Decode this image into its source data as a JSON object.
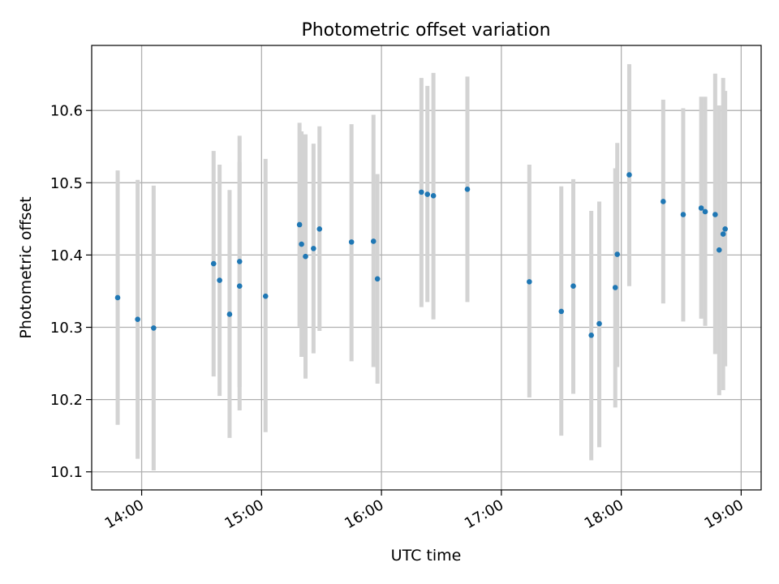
{
  "chart_data": {
    "type": "scatter",
    "title": "Photometric offset variation",
    "xlabel": "UTC time",
    "ylabel": "Photometric offset",
    "x_ticks": [
      "14:00",
      "15:00",
      "16:00",
      "17:00",
      "18:00",
      "19:00"
    ],
    "y_ticks": [
      "10.1",
      "10.2",
      "10.3",
      "10.4",
      "10.5",
      "10.6"
    ],
    "xlim": [
      "13:35",
      "19:10"
    ],
    "ylim": [
      10.075,
      10.69
    ],
    "grid": true,
    "colors": {
      "point": "#1f77b4",
      "errorbar": "#d3d3d3",
      "grid": "#b0b0b0"
    },
    "points": [
      {
        "x": "13:48",
        "y": 10.341,
        "ylo": 10.165,
        "yhi": 10.517
      },
      {
        "x": "13:58",
        "y": 10.311,
        "ylo": 10.118,
        "yhi": 10.504
      },
      {
        "x": "14:06",
        "y": 10.299,
        "ylo": 10.102,
        "yhi": 10.496
      },
      {
        "x": "14:36",
        "y": 10.388,
        "ylo": 10.232,
        "yhi": 10.544
      },
      {
        "x": "14:39",
        "y": 10.365,
        "ylo": 10.205,
        "yhi": 10.525
      },
      {
        "x": "14:44",
        "y": 10.318,
        "ylo": 10.147,
        "yhi": 10.49
      },
      {
        "x": "14:49",
        "y": 10.391,
        "ylo": 10.217,
        "yhi": 10.565
      },
      {
        "x": "14:49",
        "y": 10.357,
        "ylo": 10.185,
        "yhi": 10.529
      },
      {
        "x": "15:02",
        "y": 10.343,
        "ylo": 10.155,
        "yhi": 10.533
      },
      {
        "x": "15:19",
        "y": 10.442,
        "ylo": 10.301,
        "yhi": 10.583
      },
      {
        "x": "15:20",
        "y": 10.415,
        "ylo": 10.259,
        "yhi": 10.571
      },
      {
        "x": "15:22",
        "y": 10.398,
        "ylo": 10.229,
        "yhi": 10.567
      },
      {
        "x": "15:26",
        "y": 10.409,
        "ylo": 10.264,
        "yhi": 10.554
      },
      {
        "x": "15:29",
        "y": 10.436,
        "ylo": 10.295,
        "yhi": 10.578
      },
      {
        "x": "15:45",
        "y": 10.418,
        "ylo": 10.253,
        "yhi": 10.581
      },
      {
        "x": "15:56",
        "y": 10.419,
        "ylo": 10.245,
        "yhi": 10.594
      },
      {
        "x": "15:58",
        "y": 10.367,
        "ylo": 10.222,
        "yhi": 10.512
      },
      {
        "x": "16:20",
        "y": 10.487,
        "ylo": 10.328,
        "yhi": 10.645
      },
      {
        "x": "16:23",
        "y": 10.484,
        "ylo": 10.335,
        "yhi": 10.634
      },
      {
        "x": "16:26",
        "y": 10.482,
        "ylo": 10.311,
        "yhi": 10.652
      },
      {
        "x": "16:43",
        "y": 10.491,
        "ylo": 10.335,
        "yhi": 10.647
      },
      {
        "x": "17:14",
        "y": 10.363,
        "ylo": 10.203,
        "yhi": 10.525
      },
      {
        "x": "17:30",
        "y": 10.322,
        "ylo": 10.15,
        "yhi": 10.495
      },
      {
        "x": "17:36",
        "y": 10.357,
        "ylo": 10.208,
        "yhi": 10.505
      },
      {
        "x": "17:45",
        "y": 10.289,
        "ylo": 10.116,
        "yhi": 10.461
      },
      {
        "x": "17:49",
        "y": 10.305,
        "ylo": 10.134,
        "yhi": 10.474
      },
      {
        "x": "17:57",
        "y": 10.355,
        "ylo": 10.189,
        "yhi": 10.52
      },
      {
        "x": "17:58",
        "y": 10.401,
        "ylo": 10.245,
        "yhi": 10.555
      },
      {
        "x": "18:04",
        "y": 10.511,
        "ylo": 10.357,
        "yhi": 10.664
      },
      {
        "x": "18:21",
        "y": 10.474,
        "ylo": 10.333,
        "yhi": 10.615
      },
      {
        "x": "18:31",
        "y": 10.456,
        "ylo": 10.308,
        "yhi": 10.603
      },
      {
        "x": "18:40",
        "y": 10.465,
        "ylo": 10.312,
        "yhi": 10.619
      },
      {
        "x": "18:42",
        "y": 10.46,
        "ylo": 10.302,
        "yhi": 10.619
      },
      {
        "x": "18:47",
        "y": 10.456,
        "ylo": 10.263,
        "yhi": 10.651
      },
      {
        "x": "18:49",
        "y": 10.407,
        "ylo": 10.206,
        "yhi": 10.607
      },
      {
        "x": "18:51",
        "y": 10.429,
        "ylo": 10.213,
        "yhi": 10.645
      },
      {
        "x": "18:52",
        "y": 10.436,
        "ylo": 10.246,
        "yhi": 10.627
      }
    ]
  }
}
